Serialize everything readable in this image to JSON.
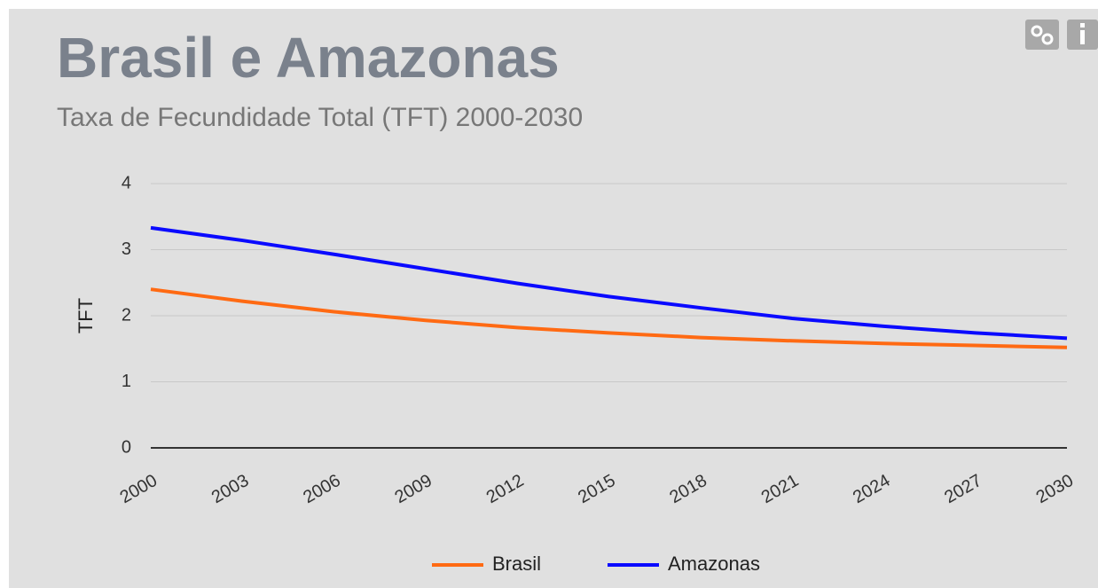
{
  "chart_data": {
    "type": "line",
    "title": "Brasil e Amazonas",
    "subtitle": "Taxa de Fecundidade Total (TFT) 2000-2030",
    "y_label": "TFT",
    "x": [
      2000,
      2003,
      2006,
      2009,
      2012,
      2015,
      2018,
      2021,
      2024,
      2027,
      2030
    ],
    "series": [
      {
        "name": "Brasil",
        "color": "#ff6a13",
        "values": [
          2.4,
          2.22,
          2.06,
          1.93,
          1.82,
          1.74,
          1.67,
          1.62,
          1.58,
          1.55,
          1.52
        ]
      },
      {
        "name": "Amazonas",
        "color": "#0a0aff",
        "values": [
          3.33,
          3.14,
          2.93,
          2.71,
          2.49,
          2.29,
          2.12,
          1.96,
          1.84,
          1.74,
          1.66
        ]
      }
    ],
    "xlim": [
      2000,
      2030
    ],
    "xticks": [
      2000,
      2003,
      2006,
      2009,
      2012,
      2015,
      2018,
      2021,
      2024,
      2027,
      2030
    ],
    "ylim": [
      0,
      4
    ],
    "yticks": [
      0,
      1,
      2,
      3,
      4
    ],
    "grid": true,
    "legend": "bottom"
  }
}
